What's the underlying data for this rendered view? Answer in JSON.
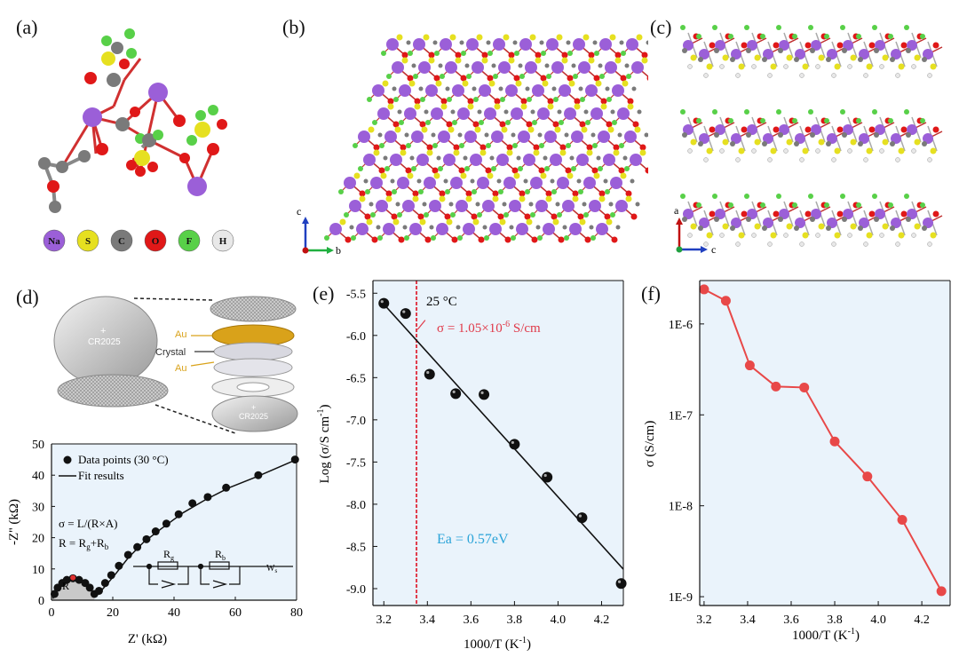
{
  "panels": {
    "a": {
      "letter": "(a)",
      "legend": [
        {
          "symbol": "Na",
          "color": "#9b5fd8"
        },
        {
          "symbol": "S",
          "color": "#e6e020"
        },
        {
          "symbol": "C",
          "color": "#7a7a7a"
        },
        {
          "symbol": "O",
          "color": "#e01818"
        },
        {
          "symbol": "F",
          "color": "#58d048"
        },
        {
          "symbol": "H",
          "color": "#e8e8e8"
        }
      ]
    },
    "b": {
      "letter": "(b)",
      "axis_c": "c",
      "axis_b": "b"
    },
    "c": {
      "letter": "(c)",
      "axis_a": "a",
      "axis_c": "c"
    },
    "d": {
      "letter": "(d)",
      "cell_label_1": "CR2025",
      "cell_label_2": "CR2025",
      "au_top": "Au",
      "crystal": "Crystal",
      "au_bottom": "Au",
      "legend_points": "Data points (30 °C)",
      "legend_fit": "Fit results",
      "eq1": "σ = L/(R×A)",
      "eq2_prefix": "R = R",
      "eq2_sub1": "g",
      "eq2_mid": "+R",
      "eq2_sub2": "b",
      "circuit_rg": "R",
      "circuit_rg_sub": "g",
      "circuit_rb": "R",
      "circuit_rb_sub": "b",
      "circuit_w": "W",
      "circuit_w_sub": "s",
      "r_label": "R"
    },
    "e": {
      "letter": "(e)",
      "temp_label": "25 °C",
      "sigma_prefix": "σ = 1.05×10",
      "sigma_exp": "-6",
      "sigma_suffix": " S/cm",
      "ea_label": "Ea = 0.57eV"
    },
    "f": {
      "letter": "(f)"
    }
  },
  "chart_data": [
    {
      "id": "d",
      "type": "scatter",
      "xlabel": "Z' (kΩ)",
      "ylabel": "-Z'' (kΩ)",
      "xlim": [
        0,
        80
      ],
      "ylim": [
        0,
        50
      ],
      "xticks": [
        0,
        20,
        40,
        60,
        80
      ],
      "yticks": [
        0,
        10,
        20,
        30,
        40,
        50
      ],
      "series": [
        {
          "name": "Data points (30 °C)",
          "x": [
            1.0,
            2.0,
            3.5,
            5.0,
            7.0,
            9.0,
            11.0,
            12.5,
            14.0,
            15.5,
            17.5,
            19.5,
            22.0,
            25.0,
            28.0,
            31.0,
            34.0,
            37.5,
            41.5,
            46.0,
            51.0,
            57.0,
            67.5,
            79.5
          ],
          "y": [
            2.0,
            4.0,
            5.5,
            6.5,
            7.0,
            6.5,
            5.5,
            4.0,
            2.0,
            3.0,
            5.5,
            8.0,
            11.0,
            14.5,
            17.0,
            19.5,
            22.0,
            24.5,
            27.5,
            31.0,
            33.0,
            36.0,
            40.0,
            45.0
          ]
        },
        {
          "name": "Fit results",
          "x": [
            0.5,
            2,
            4,
            6,
            8,
            10,
            12,
            13.5,
            14.5,
            16,
            18,
            21,
            25,
            30,
            36,
            43,
            50,
            58,
            67,
            80
          ],
          "y": [
            0.5,
            4.5,
            6.3,
            7.0,
            6.8,
            6.0,
            4.2,
            2.5,
            1.8,
            2.8,
            5.0,
            8.5,
            13.5,
            18.5,
            23.0,
            28.0,
            32.0,
            36.0,
            39.5,
            45.0
          ]
        }
      ]
    },
    {
      "id": "e",
      "type": "scatter",
      "xlabel": "1000/T (K-1)",
      "ylabel": "Log (σ/S cm-1)",
      "xlim": [
        3.15,
        4.3
      ],
      "ylim": [
        -9.2,
        -5.35
      ],
      "xticks": [
        3.2,
        3.4,
        3.6,
        3.8,
        4.0,
        4.2
      ],
      "yticks": [
        -5.5,
        -6.0,
        -6.5,
        -7.0,
        -7.5,
        -8.0,
        -8.5,
        -9.0
      ],
      "ytick_labels": [
        "-5.5",
        "-6.0",
        "-6.5",
        "-7.0",
        "-7.5",
        "-8.0",
        "-8.5",
        "-9.0"
      ],
      "vline_x": 3.35,
      "fit_line": {
        "x": [
          3.2,
          4.3
        ],
        "y": [
          -5.63,
          -8.77
        ]
      },
      "series": [
        {
          "x": [
            3.2,
            3.3,
            3.41,
            3.53,
            3.66,
            3.8,
            3.95,
            4.11,
            4.29
          ],
          "y": [
            -5.62,
            -5.74,
            -6.46,
            -6.69,
            -6.7,
            -7.29,
            -7.68,
            -8.16,
            -8.94
          ]
        }
      ]
    },
    {
      "id": "f",
      "type": "line",
      "xlabel": "1000/T (K-1)",
      "ylabel": "σ (S/cm)",
      "yscale": "log",
      "xlim": [
        3.18,
        4.33
      ],
      "ylim": [
        8e-10,
        3e-06
      ],
      "xticks": [
        3.2,
        3.4,
        3.6,
        3.8,
        4.0,
        4.2
      ],
      "yticks": [
        1e-06,
        1e-07,
        1e-08,
        1e-09
      ],
      "ytick_labels": [
        "1E-6",
        "1E-7",
        "1E-8",
        "1E-9"
      ],
      "series": [
        {
          "x": [
            3.2,
            3.3,
            3.41,
            3.53,
            3.66,
            3.8,
            3.95,
            4.11,
            4.29
          ],
          "y": [
            2.4e-06,
            1.8e-06,
            3.5e-07,
            2.05e-07,
            2e-07,
            5.1e-08,
            2.1e-08,
            7e-09,
            1.15e-09
          ]
        }
      ]
    }
  ]
}
